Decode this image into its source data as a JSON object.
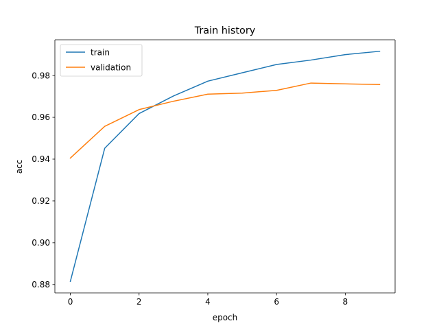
{
  "chart_data": {
    "type": "line",
    "title": "Train history",
    "xlabel": "epoch",
    "ylabel": "acc",
    "x": [
      0,
      1,
      2,
      3,
      4,
      5,
      6,
      7,
      8,
      9
    ],
    "series": [
      {
        "name": "train",
        "color": "#1f77b4",
        "values": [
          0.8815,
          0.9452,
          0.9618,
          0.9702,
          0.9773,
          0.9813,
          0.9853,
          0.9874,
          0.99,
          0.9916
        ]
      },
      {
        "name": "validation",
        "color": "#ff7f0e",
        "values": [
          0.9405,
          0.9557,
          0.9637,
          0.9677,
          0.9711,
          0.9716,
          0.9729,
          0.9764,
          0.976,
          0.9757
        ]
      }
    ],
    "xlim": [
      -0.45,
      9.45
    ],
    "ylim": [
      0.876,
      0.9971
    ],
    "xticks": [
      0,
      2,
      4,
      6,
      8
    ],
    "yticks": [
      0.88,
      0.9,
      0.92,
      0.94,
      0.96,
      0.98
    ],
    "xtick_labels": [
      "0",
      "2",
      "4",
      "6",
      "8"
    ],
    "ytick_labels": [
      "0.88",
      "0.90",
      "0.92",
      "0.94",
      "0.96",
      "0.98"
    ],
    "grid": false,
    "legend_position": "top-left"
  }
}
